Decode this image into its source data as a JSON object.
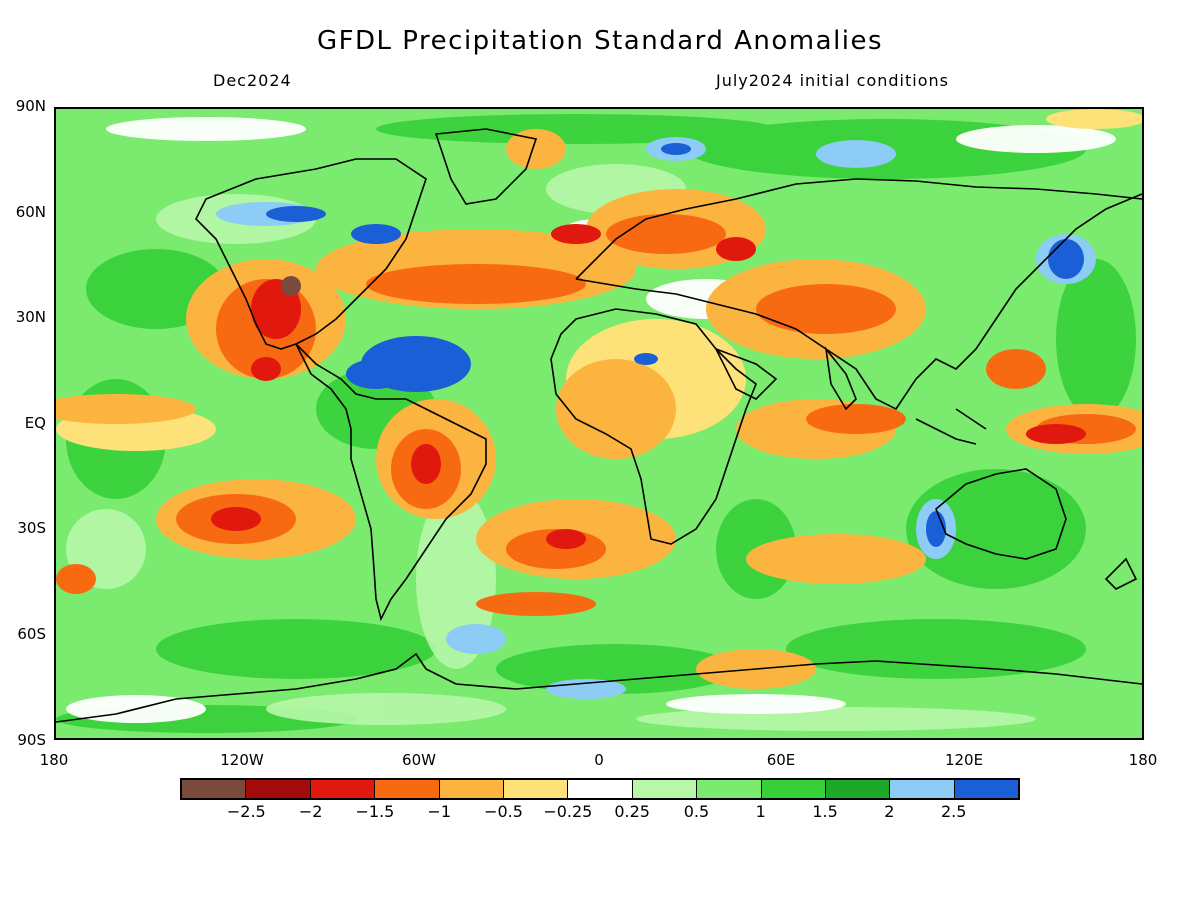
{
  "title": "GFDL Precipitation Standard Anomalies",
  "subtitle_left": "Dec2024",
  "subtitle_right": "July2024 initial conditions",
  "lat_labels": [
    "90N",
    "60N",
    "30N",
    "EQ",
    "30S",
    "60S",
    "90S"
  ],
  "lon_labels": [
    "180",
    "120W",
    "60W",
    "0",
    "60E",
    "120E",
    "180"
  ],
  "colorbar": {
    "colors": [
      "#7a4a3c",
      "#a30a0a",
      "#e0180e",
      "#f86a12",
      "#fbb440",
      "#fde27a",
      "#ffffff",
      "#b6f7a8",
      "#7aeb6e",
      "#36d038",
      "#1ea82a",
      "#8cccf5",
      "#1a5fd6"
    ],
    "tick_labels": [
      "−2.5",
      "−2",
      "−1.5",
      "−1",
      "−0.5",
      "−0.25",
      "0.25",
      "0.5",
      "1",
      "1.5",
      "2",
      "2.5"
    ]
  },
  "map_legend_colors": {
    "dry_strong": "#e0180e",
    "dry_moderate": "#f86a12",
    "dry_weak": "#fbb440",
    "dry_slight": "#fde27a",
    "neutral": "#ffffff",
    "wet_slight": "#b6f7a8",
    "wet_weak": "#7aeb6e",
    "wet_moderate": "#36d038",
    "wet_strong": "#1ea82a",
    "wet_very": "#8cccf5",
    "wet_extreme": "#1a5fd6"
  }
}
